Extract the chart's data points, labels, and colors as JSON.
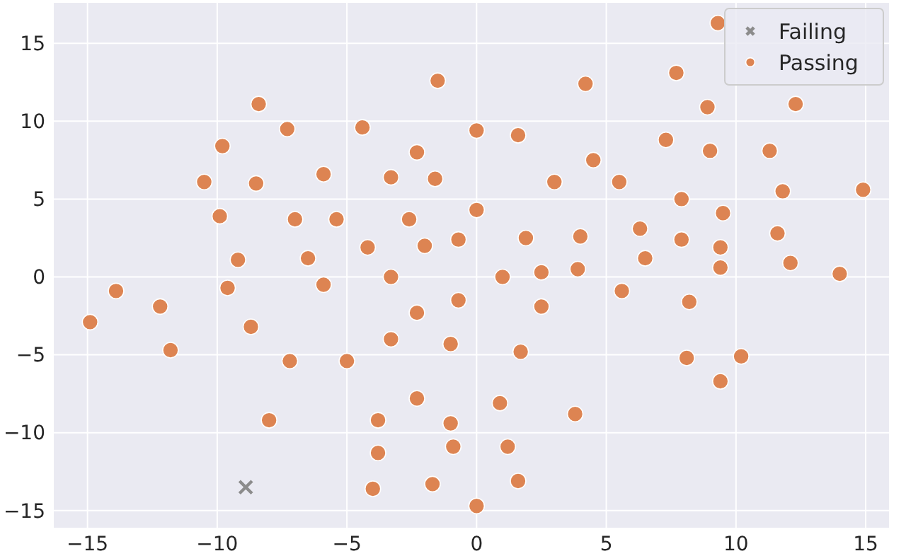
{
  "chart_data": {
    "type": "scatter",
    "xlim": [
      -16.3,
      15.9
    ],
    "ylim": [
      -16.1,
      17.6
    ],
    "xticks": [
      -15,
      -10,
      -5,
      0,
      5,
      10,
      15
    ],
    "yticks": [
      -15,
      -10,
      -5,
      0,
      5,
      10,
      15
    ],
    "grid": true,
    "legend": "top right",
    "series": [
      {
        "name": "Failing",
        "color": "#8c8c8c",
        "marker": "cross",
        "x": [
          -8.9
        ],
        "values": [
          -13.5
        ]
      },
      {
        "name": "Passing",
        "color": "#dd8452",
        "marker": "circle",
        "x": [
          -8.4,
          -1.5,
          -7.3,
          -4.4,
          0,
          -9.8,
          -2.3,
          -10.5,
          -8.5,
          -5.9,
          -3.3,
          -1.6,
          -9.9,
          -7.0,
          -5.4,
          -2.6,
          0,
          -4.2,
          -2.0,
          -0.7,
          -9.2,
          -6.5,
          -3.3,
          9.3,
          7.7,
          4.2,
          8.9,
          12.3,
          1.6,
          7.3,
          9.0,
          11.3,
          4.5,
          3.0,
          5.5,
          11.8,
          14.9,
          7.9,
          9.5,
          1.9,
          4.0,
          6.3,
          7.9,
          9.4,
          11.6,
          6.5,
          1.0,
          2.5,
          3.9,
          9.4,
          12.1,
          14.0,
          -13.9,
          -12.2,
          -14.9,
          -11.8,
          -9.6,
          -8.7,
          -5.9,
          -0.7,
          -2.3,
          -3.3,
          -1.0,
          -7.2,
          -5.0,
          -2.3,
          -8.0,
          -3.8,
          -1.0,
          -3.8,
          -0.9,
          -4.0,
          -1.7,
          0,
          5.6,
          8.2,
          2.5,
          1.7,
          8.1,
          10.2,
          9.4,
          0.9,
          3.8,
          1.2,
          1.6
        ],
        "values": [
          11.1,
          12.6,
          9.5,
          9.6,
          9.4,
          8.4,
          8.0,
          6.1,
          6.0,
          6.6,
          6.4,
          6.3,
          3.9,
          3.7,
          3.7,
          3.7,
          4.3,
          1.9,
          2.0,
          2.4,
          1.1,
          1.2,
          0,
          16.3,
          13.1,
          12.4,
          10.9,
          11.1,
          9.1,
          8.8,
          8.1,
          8.1,
          7.5,
          6.1,
          6.1,
          5.5,
          5.6,
          5.0,
          4.1,
          2.5,
          2.6,
          3.1,
          2.4,
          1.9,
          2.8,
          1.2,
          0,
          0.3,
          0.5,
          0.6,
          0.9,
          0.2,
          -0.9,
          -1.9,
          -2.9,
          -4.7,
          -0.7,
          -3.2,
          -0.5,
          -1.5,
          -2.3,
          -4.0,
          -4.3,
          -5.4,
          -5.4,
          -7.8,
          -9.2,
          -9.2,
          -9.4,
          -11.3,
          -10.9,
          -13.6,
          -13.3,
          -14.7,
          -0.9,
          -1.6,
          -1.9,
          -4.8,
          -5.2,
          -5.1,
          -6.7,
          -8.1,
          -8.8,
          -10.9,
          -13.1
        ]
      }
    ]
  }
}
